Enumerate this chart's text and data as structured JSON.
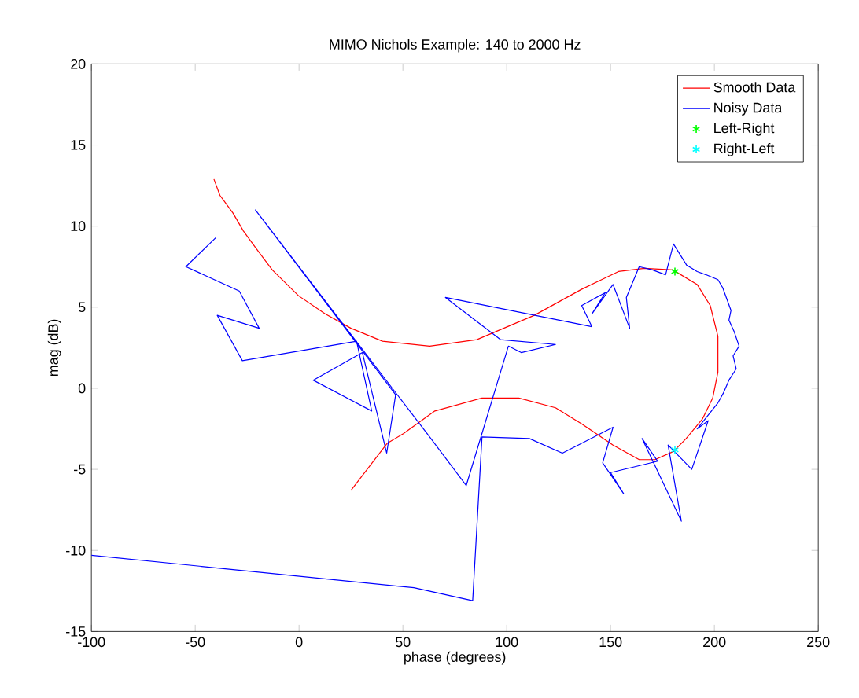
{
  "chart_data": {
    "type": "line",
    "title": "MIMO Nichols Example: 140 to 2000 Hz",
    "xlabel": "phase (degrees)",
    "ylabel": "mag (dB)",
    "xlim": [
      -100,
      250
    ],
    "ylim": [
      -15,
      20
    ],
    "xticks": [
      -100,
      -50,
      0,
      50,
      100,
      150,
      200,
      250
    ],
    "yticks": [
      -15,
      -10,
      -5,
      0,
      5,
      10,
      15,
      20
    ],
    "legend": "top right",
    "series": [
      {
        "name": "Smooth Data",
        "marker": "none",
        "color": "#ff0000",
        "x": [
          -41,
          -38.1,
          -31.8,
          -26.8,
          -20.5,
          -12.9,
          -0.2,
          12.4,
          25,
          40.2,
          62.9,
          85.6,
          113.3,
          136,
          153.8,
          166.4,
          180,
          191.7,
          198,
          201.7,
          201.7,
          199.2,
          194.2,
          186.4,
          180.3,
          171.4,
          163.8,
          151.2,
          136.1,
          123.5,
          105.8,
          88.1,
          65.4,
          50.2,
          42.4,
          25
        ],
        "values": [
          12.9,
          11.9,
          10.8,
          9.7,
          8.6,
          7.3,
          5.7,
          4.6,
          3.7,
          2.9,
          2.6,
          3.0,
          4.5,
          6.1,
          7.2,
          7.4,
          7.3,
          6.4,
          5.1,
          3.2,
          1.0,
          -0.6,
          -1.9,
          -3.1,
          -3.9,
          -4.4,
          -4.4,
          -3.5,
          -2.2,
          -1.2,
          -0.6,
          -0.6,
          -1.4,
          -2.8,
          -3.4,
          -6.3
        ]
      },
      {
        "name": "Noisy Data",
        "marker": "none",
        "color": "#0000ff",
        "x": [
          -40,
          -54.5,
          -28.8,
          -19.2,
          -39.4,
          -27.3,
          27.7,
          35,
          6.8,
          30.5,
          42.2,
          46.5,
          -21,
          62.9,
          80.5,
          100.8,
          107,
          123.5,
          97,
          70.5,
          141,
          136.1,
          147.5,
          141.1,
          151.2,
          159.2,
          157.6,
          163.8,
          170.2,
          176.5,
          180.3,
          186.6,
          191.7,
          196,
          201.7,
          204,
          206,
          208,
          207,
          209.5,
          211.9,
          209,
          210.5,
          207,
          204.3,
          201.7,
          191.7,
          197,
          189.1,
          177.7,
          184.1,
          165.2,
          172.7,
          150,
          156.3,
          146.2,
          151.2,
          126.8,
          110.9,
          88.1,
          83.6,
          55.3,
          -100
        ],
        "values": [
          9.3,
          7.5,
          6.0,
          3.7,
          4.5,
          1.7,
          2.9,
          -1.4,
          0.5,
          2.2,
          -4.0,
          -0.4,
          11.0,
          -3.0,
          -6.0,
          2.6,
          2.2,
          2.7,
          3.0,
          5.6,
          3.8,
          5.1,
          5.9,
          4.6,
          6.4,
          3.7,
          5.6,
          7.5,
          7.3,
          7.0,
          8.9,
          7.6,
          7.2,
          7.0,
          6.7,
          6.2,
          5.5,
          4.8,
          4.2,
          3.5,
          2.6,
          2.0,
          1.2,
          0.5,
          -0.3,
          -0.9,
          -2.5,
          -2.0,
          -5.0,
          -3.5,
          -8.2,
          -3.1,
          -4.5,
          -5.2,
          -6.5,
          -4.6,
          -2.4,
          -4.0,
          -3.1,
          -3.0,
          -13.1,
          -12.3,
          -10.3
        ]
      },
      {
        "name": "Left-Right",
        "type": "scatter",
        "marker": "cross",
        "color": "#00ff00",
        "x": [
          181
        ],
        "values": [
          7.2
        ]
      },
      {
        "name": "Right-Left",
        "type": "scatter",
        "marker": "cross",
        "color": "#00ffff",
        "x": [
          181
        ],
        "values": [
          -3.8
        ]
      }
    ]
  }
}
